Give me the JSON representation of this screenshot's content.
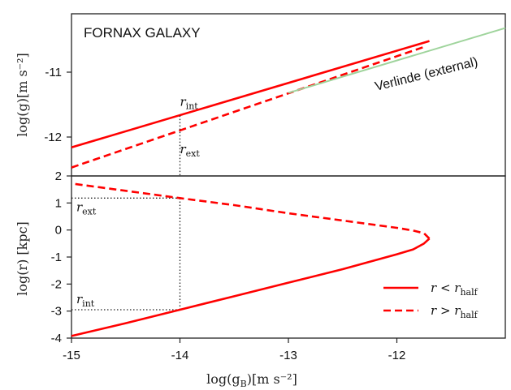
{
  "chart_data": [
    {
      "panel": "top",
      "type": "line",
      "title": "FORNAX GALAXY",
      "xlabel": "",
      "ylabel_text": "log(g)",
      "ylabel_unit": "[m s⁻²]",
      "xlim": [
        -15,
        -11
      ],
      "ylim": [
        -12.6,
        -10.1
      ],
      "yticks": [
        "-11",
        "-12"
      ],
      "ytick_values": [
        -11,
        -12
      ],
      "series": [
        {
          "style": "solid",
          "color": "#ff0000",
          "x": [
            -15.0,
            -11.7
          ],
          "y": [
            -12.16,
            -10.52
          ]
        },
        {
          "style": "dashed",
          "color": "#ff0000",
          "x": [
            -15.0,
            -11.73
          ],
          "y": [
            -12.47,
            -10.6
          ]
        },
        {
          "name": "Verlinde (external)",
          "style": "solid",
          "color": "#9fd49c",
          "x": [
            -13.0,
            -11.0
          ],
          "y": [
            -11.32,
            -10.32
          ]
        }
      ],
      "annotations": [
        {
          "text": "r",
          "sub": "int",
          "x": -14.0,
          "y": -11.62
        },
        {
          "text": "r",
          "sub": "ext",
          "x": -14.0,
          "y": -12.05
        }
      ],
      "guide": {
        "style": "dotted",
        "x": -14.0
      }
    },
    {
      "panel": "bottom",
      "type": "line",
      "xlabel_text": "log(g",
      "xlabel_sub": "B",
      "xlabel_unit": ")[m s⁻²]",
      "ylabel": "log(r) [kpc]",
      "xlim": [
        -15,
        -11
      ],
      "ylim": [
        -4,
        2
      ],
      "xticks": [
        "-15",
        "-14",
        "-13",
        "-12"
      ],
      "xtick_values": [
        -15,
        -14,
        -13,
        -12
      ],
      "yticks": [
        "2",
        "1",
        "0",
        "-1",
        "-2",
        "-3",
        "-4"
      ],
      "ytick_values": [
        2,
        1,
        0,
        -1,
        -2,
        -3,
        -4
      ],
      "series": [
        {
          "name": "r < r_half",
          "style": "solid",
          "color": "#ff0000",
          "x": [
            -15.0,
            -14.5,
            -14.0,
            -13.5,
            -13.0,
            -12.5,
            -12.0,
            -11.85,
            -11.75,
            -11.7
          ],
          "y": [
            -3.92,
            -3.45,
            -2.95,
            -2.45,
            -1.95,
            -1.45,
            -0.9,
            -0.72,
            -0.5,
            -0.32
          ]
        },
        {
          "name": "r > r_half",
          "style": "dashed",
          "color": "#ff0000",
          "x": [
            -11.7,
            -11.75,
            -11.85,
            -12.0,
            -12.5,
            -13.0,
            -13.5,
            -14.0,
            -14.5,
            -15.0
          ],
          "y": [
            -0.32,
            -0.12,
            -0.02,
            0.08,
            0.35,
            0.62,
            0.92,
            1.18,
            1.45,
            1.72
          ]
        }
      ],
      "annotations": [
        {
          "text": "r",
          "sub": "ext",
          "x": -15.0,
          "y": 1.18
        },
        {
          "text": "r",
          "sub": "int",
          "x": -15.0,
          "y": -2.95
        }
      ],
      "guides": [
        {
          "style": "dotted",
          "x": [
            -15.0,
            -14.0
          ],
          "y": [
            1.18,
            1.18
          ]
        },
        {
          "style": "dotted",
          "x": [
            -15.0,
            -14.0
          ],
          "y": [
            -2.95,
            -2.95
          ]
        },
        {
          "style": "dotted",
          "x": [
            -14.0,
            -14.0
          ],
          "y": [
            -2.95,
            1.18
          ]
        }
      ],
      "legend": {
        "placement": "lower-right",
        "entries": [
          {
            "style": "solid",
            "r": "r",
            "op": "<",
            "rr": "r",
            "sub": "half"
          },
          {
            "style": "dashed",
            "r": "r",
            "op": ">",
            "rr": "r",
            "sub": "half"
          }
        ]
      }
    }
  ]
}
